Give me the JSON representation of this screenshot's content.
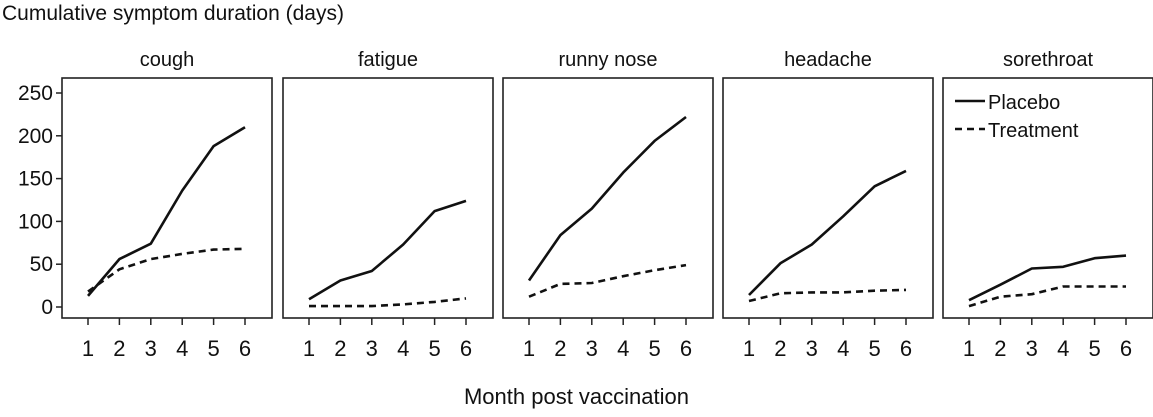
{
  "chart_data": {
    "type": "line",
    "title": "Cumulative symptom duration (days)",
    "xlabel": "Month post vaccination",
    "ylabel": "",
    "ylim": [
      0,
      250
    ],
    "yticks": [
      0,
      50,
      100,
      150,
      200,
      250
    ],
    "x": [
      1,
      2,
      3,
      4,
      5,
      6
    ],
    "legend": {
      "placement": "top-right, inside last panel",
      "entries": [
        "Placebo",
        "Treatment"
      ]
    },
    "grid": false,
    "panels": [
      {
        "name": "cough",
        "series": [
          {
            "name": "Placebo",
            "style": "solid",
            "values": [
              13,
              56,
              74,
              136,
              188,
              210
            ]
          },
          {
            "name": "Treatment",
            "style": "dashed",
            "values": [
              18,
              44,
              56,
              62,
              67,
              68
            ]
          }
        ]
      },
      {
        "name": "fatigue",
        "series": [
          {
            "name": "Placebo",
            "style": "solid",
            "values": [
              9,
              31,
              42,
              73,
              112,
              124
            ]
          },
          {
            "name": "Treatment",
            "style": "dashed",
            "values": [
              1,
              1,
              1,
              3,
              6,
              10
            ]
          }
        ]
      },
      {
        "name": "runny nose",
        "series": [
          {
            "name": "Placebo",
            "style": "solid",
            "values": [
              31,
              84,
              115,
              157,
              194,
              222
            ]
          },
          {
            "name": "Treatment",
            "style": "dashed",
            "values": [
              12,
              27,
              28,
              36,
              43,
              49
            ]
          }
        ]
      },
      {
        "name": "headache",
        "series": [
          {
            "name": "Placebo",
            "style": "solid",
            "values": [
              14,
              51,
              73,
              106,
              141,
              159
            ]
          },
          {
            "name": "Treatment",
            "style": "dashed",
            "values": [
              7,
              16,
              17,
              17,
              19,
              20
            ]
          }
        ]
      },
      {
        "name": "sorethroat",
        "series": [
          {
            "name": "Placebo",
            "style": "solid",
            "values": [
              8,
              26,
              45,
              47,
              57,
              60
            ]
          },
          {
            "name": "Treatment",
            "style": "dashed",
            "values": [
              1,
              12,
              15,
              24,
              24,
              24
            ]
          }
        ]
      }
    ]
  }
}
